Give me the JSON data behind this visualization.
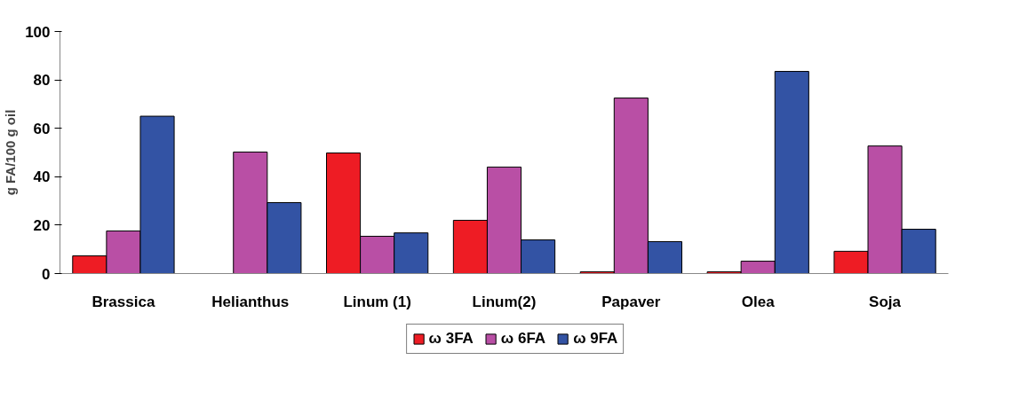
{
  "chart_data": {
    "type": "bar",
    "ylabel": "g FA/100 g oil",
    "categories": [
      "Brassica",
      "Helianthus",
      "Linum (1)",
      "Linum(2)",
      "Papaver",
      "Olea",
      "Soja"
    ],
    "series": [
      {
        "name": "ω 3FA",
        "color": "#ee1c24",
        "values": [
          7.3,
          null,
          49.8,
          22,
          0.7,
          0.7,
          9.2
        ]
      },
      {
        "name": "ω 6FA",
        "color": "#b94fa5",
        "values": [
          17.6,
          50.2,
          15.4,
          44,
          72.5,
          5.1,
          52.7
        ]
      },
      {
        "name": "ω 9FA",
        "color": "#3353a4",
        "values": [
          65,
          29.3,
          16.8,
          13.9,
          13.2,
          83.5,
          18.3
        ]
      }
    ],
    "ylim": [
      0,
      100
    ],
    "yticks": [
      0,
      20,
      40,
      60,
      80,
      100
    ],
    "grid": false,
    "legend": "bottom"
  }
}
